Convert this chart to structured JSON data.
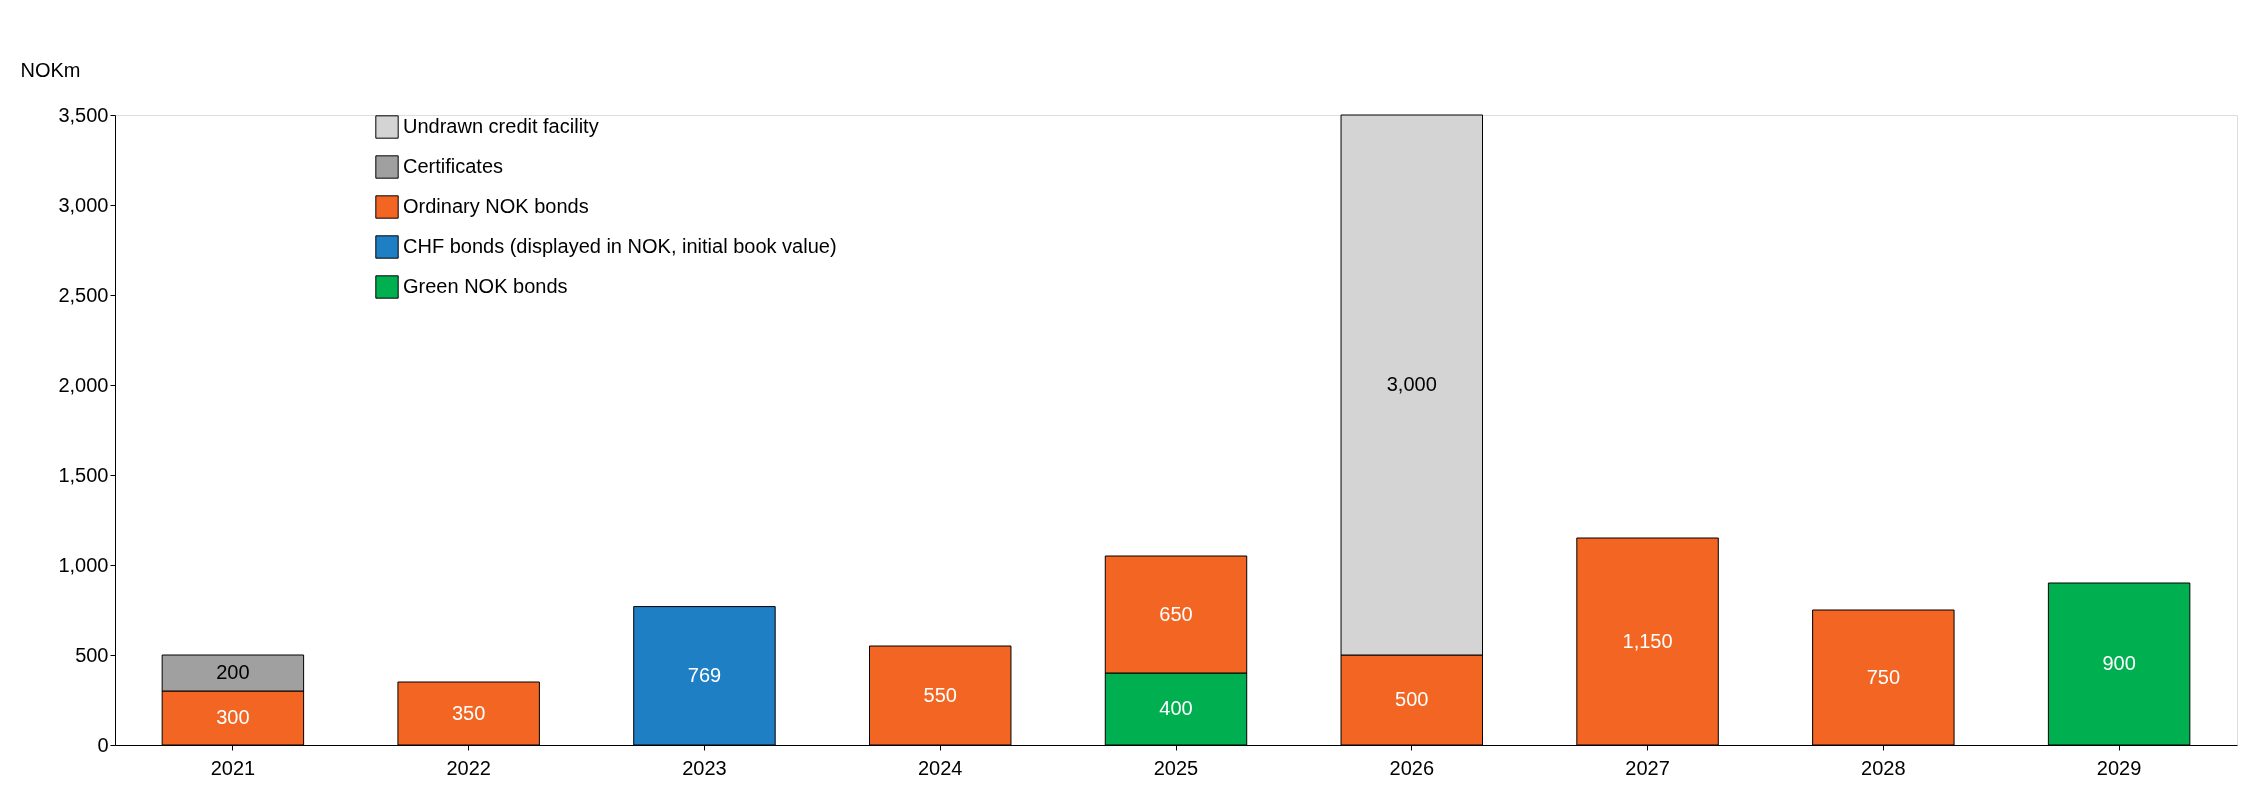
{
  "chart_data": {
    "type": "bar",
    "stacked": true,
    "ylabel": "NOKm",
    "categories": [
      "2021",
      "2022",
      "2023",
      "2024",
      "2025",
      "2026",
      "2027",
      "2028",
      "2029"
    ],
    "ylim": [
      0,
      3500
    ],
    "yticks": [
      0,
      500,
      {
        "value": 1000,
        "label": "1,000"
      },
      {
        "value": 1500,
        "label": "1,500"
      },
      {
        "value": 2000,
        "label": "2,000"
      },
      {
        "value": 2500,
        "label": "2,500"
      },
      {
        "value": 3000,
        "label": "3,000"
      },
      {
        "value": 3500,
        "label": "3,500"
      }
    ],
    "grid": false,
    "legend": "top left",
    "series": [
      {
        "name": "Green NOK bonds",
        "color": "#00b050",
        "values": [
          null,
          null,
          null,
          null,
          400,
          null,
          null,
          null,
          900
        ],
        "value_labels": [
          null,
          null,
          null,
          null,
          "400",
          null,
          null,
          null,
          "900"
        ]
      },
      {
        "name": "CHF bonds (displayed in NOK, initial book value)",
        "color": "#1f7fc4",
        "values": [
          null,
          null,
          769,
          null,
          null,
          null,
          null,
          null,
          null
        ],
        "value_labels": [
          null,
          null,
          "769",
          null,
          null,
          null,
          null,
          null,
          null
        ]
      },
      {
        "name": "Ordinary NOK bonds",
        "color": "#f26522",
        "values": [
          300,
          350,
          null,
          550,
          650,
          500,
          1150,
          750,
          null
        ],
        "value_labels": [
          "300",
          "350",
          null,
          "550",
          "650",
          "500",
          "1,150",
          "750",
          null
        ]
      },
      {
        "name": "Certificates",
        "color": "#a0a0a0",
        "values": [
          200,
          null,
          null,
          null,
          null,
          null,
          null,
          null,
          null
        ],
        "value_labels": [
          "200",
          null,
          null,
          null,
          null,
          null,
          null,
          null,
          null
        ]
      },
      {
        "name": "Undrawn credit facility",
        "color": "#d4d4d4",
        "values": [
          null,
          null,
          null,
          null,
          null,
          3000,
          null,
          null,
          null
        ],
        "value_labels": [
          null,
          null,
          null,
          null,
          null,
          "3,000",
          null,
          null,
          null
        ]
      }
    ]
  }
}
